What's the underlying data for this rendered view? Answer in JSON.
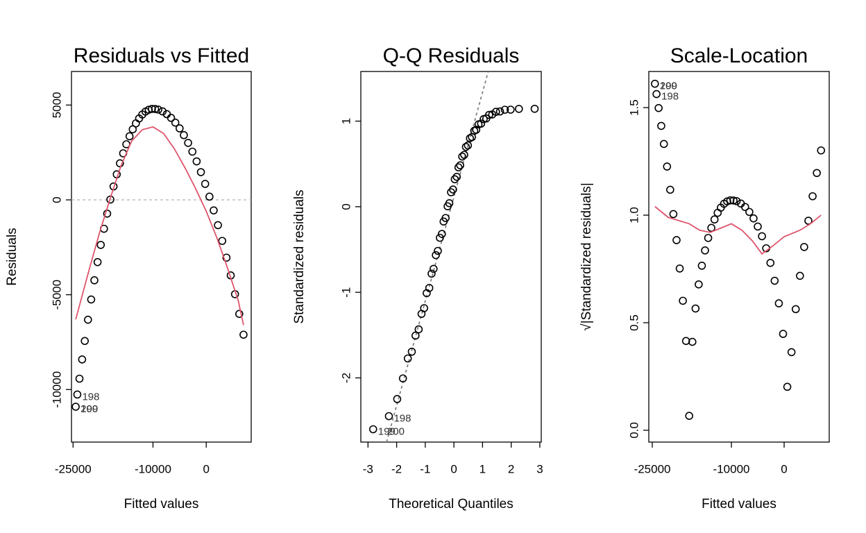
{
  "chart_data": [
    {
      "type": "scatter",
      "title": "Residuals vs Fitted",
      "x_label": "Fitted values",
      "y_label": "Residuals",
      "x": [
        -24500,
        -24200,
        -23800,
        -23300,
        -22800,
        -22200,
        -21600,
        -21000,
        -20400,
        -19800,
        -19200,
        -18600,
        -18000,
        -17400,
        -16800,
        -16200,
        -15600,
        -15000,
        -14400,
        -13800,
        -13200,
        -12600,
        -12000,
        -11400,
        -10800,
        -10200,
        -9600,
        -9000,
        -8200,
        -7400,
        -6600,
        -5800,
        -5000,
        -4200,
        -3400,
        -2600,
        -1800,
        -1000,
        -200,
        600,
        1400,
        2200,
        3000,
        3800,
        4600,
        5400,
        6200,
        7000
      ],
      "values": [
        -10906,
        -10263,
        -9426,
        -8414,
        -7439,
        -6318,
        -5252,
        -4239,
        -3280,
        -2374,
        -1523,
        -725,
        19,
        709,
        1346,
        1929,
        2457,
        2932,
        3354,
        3721,
        4035,
        4295,
        4501,
        4654,
        4752,
        4797,
        4793,
        4759,
        4667,
        4521,
        4324,
        4073,
        3770,
        3414,
        3005,
        2544,
        2030,
        1463,
        843,
        171,
        -554,
        -1332,
        -2163,
        -3046,
        -3982,
        -4971,
        -6012,
        -7107
      ],
      "color": "#000000",
      "xlim": [
        -25300,
        8440
      ],
      "ylim": [
        -12770,
        6770
      ],
      "xticks": [
        -25000,
        -10000,
        0
      ],
      "yticks": [
        -10000,
        -5000,
        0,
        5000
      ],
      "smooth": {
        "color": "#DF536B",
        "x": [
          -24500,
          -22000,
          -20000,
          -18000,
          -16000,
          -14000,
          -12000,
          -10000,
          -8000,
          -6000,
          -4000,
          -2000,
          0,
          2000,
          4000,
          6000,
          7000
        ],
        "values": [
          -6300,
          -3700,
          -1700,
          100,
          1800,
          3100,
          3700,
          3850,
          3500,
          2700,
          1700,
          600,
          -600,
          -2000,
          -3600,
          -5300,
          -6600
        ]
      },
      "hline": {
        "value": 0,
        "color": "#bebebe"
      },
      "annotations": [
        {
          "text": "198",
          "x": -24200,
          "y": -10263
        },
        {
          "text": "199",
          "x": -24500,
          "y": -10906
        },
        {
          "text": "200",
          "x": -24500,
          "y": -10906
        }
      ]
    },
    {
      "type": "scatter",
      "title": "Q-Q Residuals",
      "x_label": "Theoretical Quantiles",
      "y_label": "Standardized residuals",
      "x": [
        -2.82,
        -2.27,
        -1.98,
        -1.78,
        -1.61,
        -1.47,
        -1.34,
        -1.23,
        -1.13,
        -1.04,
        -0.95,
        -0.86,
        -0.78,
        -0.71,
        -0.63,
        -0.56,
        -0.49,
        -0.42,
        -0.36,
        -0.29,
        -0.22,
        -0.16,
        -0.1,
        -0.03,
        0.03,
        0.1,
        0.16,
        0.22,
        0.29,
        0.36,
        0.42,
        0.49,
        0.56,
        0.63,
        0.71,
        0.78,
        0.86,
        0.95,
        1.04,
        1.13,
        1.23,
        1.34,
        1.47,
        1.61,
        1.78,
        1.98,
        2.27,
        2.82
      ],
      "values": [
        -2.6,
        -2.447,
        -2.247,
        -2.006,
        -1.773,
        -1.694,
        -1.506,
        -1.433,
        -1.252,
        -1.185,
        -1.01,
        -0.949,
        -0.782,
        -0.726,
        -0.566,
        -0.516,
        -0.363,
        -0.318,
        -0.173,
        -0.132,
        0.005,
        0.041,
        0.169,
        0.201,
        0.321,
        0.349,
        0.46,
        0.484,
        0.586,
        0.606,
        0.699,
        0.716,
        0.8,
        0.814,
        0.887,
        0.899,
        0.962,
        0.971,
        1.024,
        1.031,
        1.073,
        1.078,
        1.109,
        1.113,
        1.133,
        1.134,
        1.143,
        1.144
      ],
      "color": "#000000",
      "xlim": [
        -3.25,
        3.05
      ],
      "ylim": [
        -2.75,
        1.58
      ],
      "xticks": [
        -3,
        -2,
        -1,
        0,
        1,
        2,
        3
      ],
      "yticks": [
        -2,
        -1,
        0,
        1
      ],
      "qq_line": {
        "color": "#808080",
        "x": [
          -2.35,
          1.2
        ],
        "values": [
          -2.75,
          1.58
        ]
      },
      "annotations": [
        {
          "text": "198",
          "x": -2.27,
          "y": -2.447
        },
        {
          "text": "199",
          "x": -2.82,
          "y": -2.6
        },
        {
          "text": "200",
          "x": -2.5,
          "y": -2.6
        }
      ]
    },
    {
      "type": "scatter",
      "title": "Scale-Location",
      "x_label": "Fitted values",
      "y_label": "√|Standardized residuals|",
      "x": [
        -24500,
        -24200,
        -23800,
        -23300,
        -22800,
        -22200,
        -21600,
        -21000,
        -20400,
        -19800,
        -19200,
        -18600,
        -18000,
        -17400,
        -16800,
        -16200,
        -15600,
        -15000,
        -14400,
        -13800,
        -13200,
        -12600,
        -12000,
        -11400,
        -10800,
        -10200,
        -9600,
        -9000,
        -8200,
        -7400,
        -6600,
        -5800,
        -5000,
        -4200,
        -3400,
        -2600,
        -1800,
        -1000,
        -200,
        600,
        1400,
        2200,
        3000,
        3800,
        4600,
        5400,
        6200,
        7000
      ],
      "values": [
        1.611,
        1.563,
        1.498,
        1.415,
        1.331,
        1.226,
        1.118,
        1.005,
        0.884,
        0.752,
        0.602,
        0.415,
        0.067,
        0.411,
        0.566,
        0.678,
        0.765,
        0.836,
        0.894,
        0.941,
        0.98,
        1.011,
        1.035,
        1.053,
        1.064,
        1.069,
        1.068,
        1.065,
        1.054,
        1.038,
        1.015,
        0.985,
        0.947,
        0.902,
        0.846,
        0.778,
        0.695,
        0.59,
        0.448,
        0.202,
        0.363,
        0.563,
        0.718,
        0.852,
        0.974,
        1.088,
        1.196,
        1.301
      ],
      "color": "#000000",
      "xlim": [
        -25660,
        8550
      ],
      "ylim": [
        -0.055,
        1.668
      ],
      "xticks": [
        -25000,
        -10000,
        0
      ],
      "yticks": [
        {
          "value": 0,
          "label": "0.0"
        },
        0.5,
        {
          "value": 1,
          "label": "1.0"
        },
        1.5
      ],
      "smooth": {
        "color": "#DF536B",
        "x": [
          -24500,
          -22000,
          -18000,
          -16000,
          -14000,
          -12000,
          -10000,
          -8000,
          -6000,
          -4200,
          -2000,
          0,
          3000,
          5000,
          7000
        ],
        "values": [
          1.04,
          0.99,
          0.96,
          0.93,
          0.92,
          0.94,
          0.96,
          0.93,
          0.88,
          0.82,
          0.86,
          0.9,
          0.93,
          0.96,
          1.0
        ]
      },
      "annotations": [
        {
          "text": "199",
          "x": -24500,
          "y": 1.611
        },
        {
          "text": "200",
          "x": -24500,
          "y": 1.611
        },
        {
          "text": "198",
          "x": -24200,
          "y": 1.563
        }
      ]
    }
  ]
}
